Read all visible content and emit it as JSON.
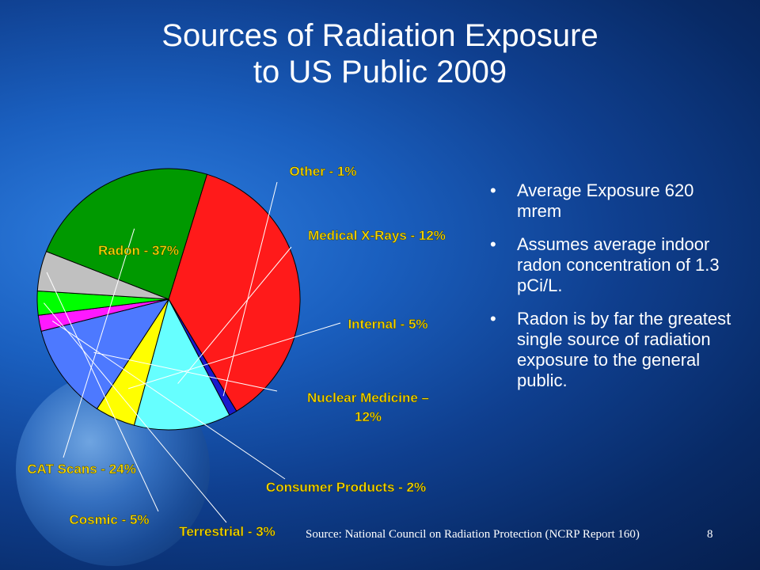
{
  "title_line1": "Sources of Radiation Exposure",
  "title_line2": "to US Public 2009",
  "bullets": [
    "Average Exposure 620 mrem",
    "Assumes average indoor radon concentration of 1.3 pCi/L.",
    "Radon is by far the greatest single source of radiation exposure to the general public."
  ],
  "source": "Source: National Council on Radiation Protection (NCRP Report 160)",
  "slide_number": "8",
  "colors": {
    "label": "#f5d600",
    "text": "#ffffff"
  },
  "chart_data": {
    "type": "pie",
    "title": "",
    "slices": [
      {
        "name": "Radon",
        "label": "Radon - 37%",
        "value": 37,
        "color": "#ff1a1a"
      },
      {
        "name": "Other",
        "label": "Other - 1%",
        "value": 1,
        "color": "#1a1acc"
      },
      {
        "name": "Medical X-Rays",
        "label": "Medical X-Rays - 12%",
        "value": 12,
        "color": "#66ffff"
      },
      {
        "name": "Internal",
        "label": "Internal - 5%",
        "value": 5,
        "color": "#ffff00"
      },
      {
        "name": "Nuclear Medicine",
        "label": "Nuclear Medicine – 12%",
        "value": 12,
        "color": "#4d79ff"
      },
      {
        "name": "Consumer Products",
        "label": "Consumer Products - 2%",
        "value": 2,
        "color": "#ff19ff"
      },
      {
        "name": "Terrestrial",
        "label": "Terrestrial - 3%",
        "value": 3,
        "color": "#00ff00"
      },
      {
        "name": "Cosmic",
        "label": "Cosmic - 5%",
        "value": 5,
        "color": "#c0c0c0"
      },
      {
        "name": "CAT Scans",
        "label": "CAT Scans - 24%",
        "value": 24,
        "color": "#009900"
      }
    ]
  }
}
